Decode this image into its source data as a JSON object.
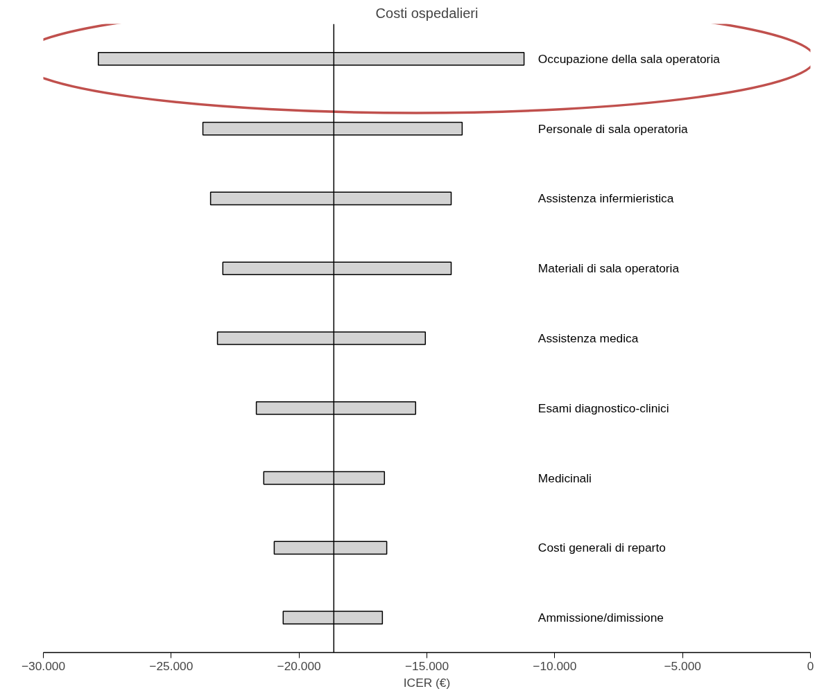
{
  "chart_data": {
    "type": "bar",
    "orientation": "horizontal",
    "title": "Costi ospedalieri",
    "xlabel": "ICER (€)",
    "categories": [
      "Occupazione della sala operatoria",
      "Personale di sala operatoria",
      "Assistenza infermieristica",
      "Materiali di sala operatoria",
      "Assistenza medica",
      "Esami diagnostico-clinici",
      "Medicinali",
      "Costi generali di reparto",
      "Ammissione/dimissione"
    ],
    "base": [
      -27850,
      -23760,
      -23460,
      -22980,
      -23190,
      -21670,
      -21380,
      -20970,
      -20620
    ],
    "values": [
      16650,
      10140,
      9410,
      8930,
      8130,
      6230,
      4720,
      4400,
      3880
    ],
    "color": "#d3d3d3",
    "xlim": [
      -30000,
      0
    ],
    "xticks": [
      {
        "value": -30000,
        "label": "−30.000"
      },
      {
        "value": -25000,
        "label": "−25.000"
      },
      {
        "value": -20000,
        "label": "−20.000"
      },
      {
        "value": -15000,
        "label": "−15.000"
      },
      {
        "value": -10000,
        "label": "−10.000"
      },
      {
        "value": -5000,
        "label": "−5.000"
      },
      {
        "value": 0,
        "label": "0"
      }
    ],
    "ref_lines": [
      {
        "axis": "x",
        "value": -18640,
        "color": "#000000"
      }
    ],
    "grid": false
  }
}
